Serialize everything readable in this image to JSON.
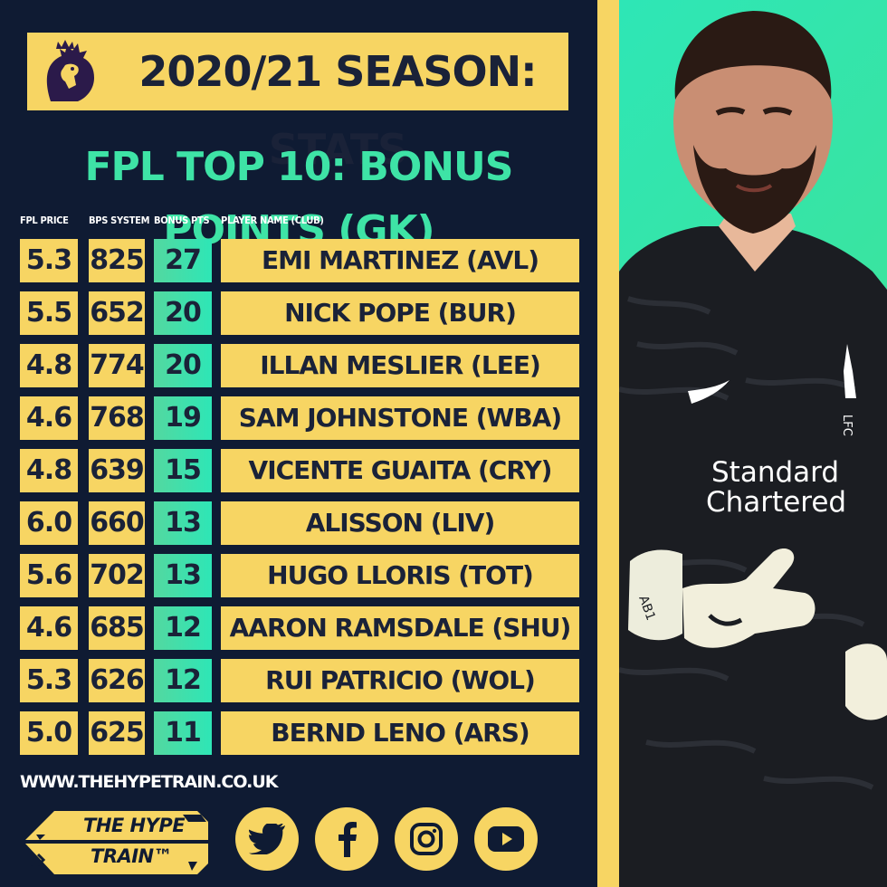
{
  "header": {
    "title": "2020/21 SEASON: STATS",
    "subtitle": "FPL TOP 10: BONUS POINTS (GK)"
  },
  "table": {
    "columns": [
      "FPL PRICE",
      "BPS SYSTEM",
      "BONUS PTS",
      "PLAYER NAME (CLUB)"
    ],
    "rows": [
      {
        "price": "5.3",
        "bps": "825",
        "bonus": "27",
        "name": "EMI MARTINEZ (AVL)"
      },
      {
        "price": "5.5",
        "bps": "652",
        "bonus": "20",
        "name": "NICK POPE (BUR)"
      },
      {
        "price": "4.8",
        "bps": "774",
        "bonus": "20",
        "name": "ILLAN MESLIER (LEE)"
      },
      {
        "price": "4.6",
        "bps": "768",
        "bonus": "19",
        "name": "SAM JOHNSTONE (WBA)"
      },
      {
        "price": "4.8",
        "bps": "639",
        "bonus": "15",
        "name": "VICENTE GUAITA (CRY)"
      },
      {
        "price": "6.0",
        "bps": "660",
        "bonus": "13",
        "name": "ALISSON (LIV)"
      },
      {
        "price": "5.6",
        "bps": "702",
        "bonus": "13",
        "name": "HUGO LLORIS (TOT)"
      },
      {
        "price": "4.6",
        "bps": "685",
        "bonus": "12",
        "name": "AARON RAMSDALE (SHU)"
      },
      {
        "price": "5.3",
        "bps": "626",
        "bonus": "12",
        "name": "RUI PATRICIO (WOL)"
      },
      {
        "price": "5.0",
        "bps": "625",
        "bonus": "11",
        "name": "BERND LENO (ARS)"
      }
    ]
  },
  "footer": {
    "website": "WWW.THEHYPETRAIN.CO.UK",
    "brand_line1": "THE HYPE",
    "brand_line2": "TRAIN™"
  },
  "social_icons": [
    "twitter-icon",
    "facebook-icon",
    "instagram-icon",
    "youtube-icon"
  ],
  "photo": {
    "kit_text_line1": "Standard",
    "kit_text_line2": "Chartered",
    "glove_text": "AB1",
    "crest_text": "LFC"
  },
  "colors": {
    "background": "#0f1b33",
    "accent_yellow": "#f7d563",
    "accent_green": "#3ee3a6"
  }
}
